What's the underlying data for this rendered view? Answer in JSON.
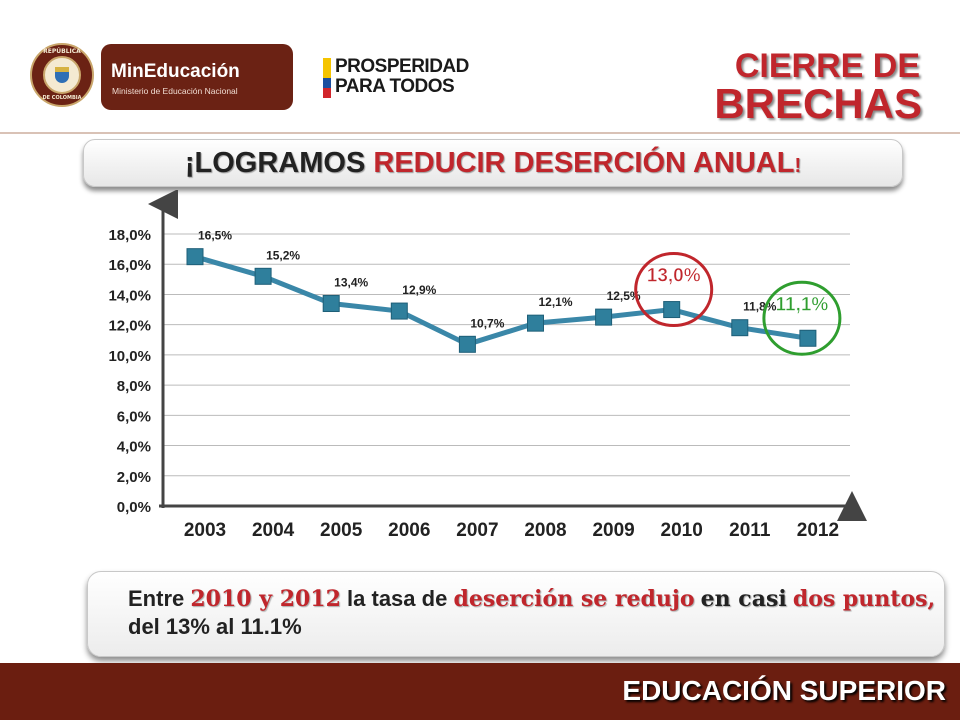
{
  "header": {
    "seal_top": "REPÚBLICA",
    "seal_bottom": "DE COLOMBIA",
    "ministry_name": "MinEducación",
    "ministry_full": "Ministerio de Educación Nacional",
    "slogan_line1": "PROSPERIDAD",
    "slogan_line2": "PARA TODOS",
    "title_line1": "CIERRE DE",
    "title_line2": "BRECHAS"
  },
  "banner": {
    "part1": "¡LOGRAMOS ",
    "part2": "REDUCIR DESERCIÓN ANUAL",
    "part3": "!"
  },
  "chart_data": {
    "type": "line",
    "categories": [
      "2003",
      "2004",
      "2005",
      "2006",
      "2007",
      "2008",
      "2009",
      "2010",
      "2011",
      "2012"
    ],
    "values": [
      16.5,
      15.2,
      13.4,
      12.9,
      10.7,
      12.1,
      12.5,
      13.0,
      11.8,
      11.1
    ],
    "data_labels": [
      "16,5%",
      "15,2%",
      "13,4%",
      "12,9%",
      "10,7%",
      "12,1%",
      "12,5%",
      "13,0%",
      "11,8%",
      "11,1%"
    ],
    "y_ticks": [
      "0,0%",
      "2,0%",
      "4,0%",
      "6,0%",
      "8,0%",
      "10,0%",
      "12,0%",
      "14,0%",
      "16,0%",
      "18,0%"
    ],
    "ylim": [
      0,
      18
    ],
    "grid": true,
    "title": "",
    "xlabel": "",
    "ylabel": "",
    "highlights": [
      {
        "category": "2010",
        "label": "13,0%",
        "color": "#c0262c"
      },
      {
        "category": "2012",
        "label": "11,1%",
        "color": "#2f9e2f"
      }
    ],
    "colors": {
      "line": "#3a87a8",
      "marker": "#2f7f9c"
    }
  },
  "note": {
    "t1": "Entre ",
    "t2": "2010 y 2012",
    "t3": " la tasa de ",
    "t4": "deserción se redujo",
    "t5": " ",
    "t6": "en casi",
    "t7": " ",
    "t8": "dos puntos,",
    "t9": " del 13% al 11.1%"
  },
  "footer": {
    "label": "EDUCACIÓN SUPERIOR"
  }
}
